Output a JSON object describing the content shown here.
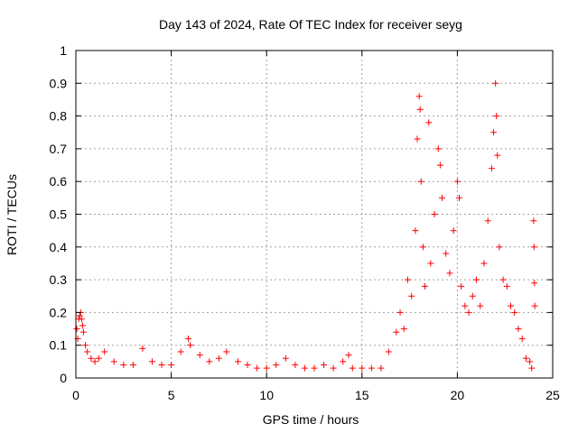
{
  "chart_data": {
    "type": "scatter",
    "title": "Day 143 of 2024, Rate Of TEC Index for receiver seyg",
    "xlabel": "GPS time / hours",
    "ylabel": "ROTI / TECUs",
    "xlim": [
      0,
      25
    ],
    "ylim": [
      0,
      1
    ],
    "x_ticks": [
      0,
      5,
      10,
      15,
      20,
      25
    ],
    "x_tick_labels": [
      "0",
      "5",
      "10",
      "15",
      "20",
      "25"
    ],
    "y_ticks": [
      0,
      0.1,
      0.2,
      0.3,
      0.4,
      0.5,
      0.6,
      0.7,
      0.8,
      0.9,
      1
    ],
    "y_tick_labels": [
      "0",
      "0.1",
      "0.2",
      "0.3",
      "0.4",
      "0.5",
      "0.6",
      "0.7",
      "0.8",
      "0.9",
      "1"
    ],
    "grid": true,
    "marker": "+",
    "colors": {
      "marker": "#ff0000",
      "grid": "#a0a0a0",
      "axis": "#000000"
    },
    "series": [
      {
        "points": [
          [
            0.05,
            0.15
          ],
          [
            0.1,
            0.12
          ],
          [
            0.15,
            0.18
          ],
          [
            0.2,
            0.19
          ],
          [
            0.25,
            0.2
          ],
          [
            0.3,
            0.18
          ],
          [
            0.35,
            0.16
          ],
          [
            0.4,
            0.14
          ],
          [
            0.5,
            0.1
          ],
          [
            0.6,
            0.08
          ],
          [
            0.8,
            0.06
          ],
          [
            1.0,
            0.05
          ],
          [
            1.2,
            0.06
          ],
          [
            1.5,
            0.08
          ],
          [
            2.0,
            0.05
          ],
          [
            2.5,
            0.04
          ],
          [
            3.0,
            0.04
          ],
          [
            3.5,
            0.09
          ],
          [
            4.0,
            0.05
          ],
          [
            4.5,
            0.04
          ],
          [
            5.0,
            0.04
          ],
          [
            5.5,
            0.08
          ],
          [
            5.9,
            0.12
          ],
          [
            6.0,
            0.1
          ],
          [
            6.5,
            0.07
          ],
          [
            7.0,
            0.05
          ],
          [
            7.5,
            0.06
          ],
          [
            7.9,
            0.08
          ],
          [
            8.5,
            0.05
          ],
          [
            9.0,
            0.04
          ],
          [
            9.5,
            0.03
          ],
          [
            10.0,
            0.03
          ],
          [
            10.5,
            0.04
          ],
          [
            11.0,
            0.06
          ],
          [
            11.5,
            0.04
          ],
          [
            12.0,
            0.03
          ],
          [
            12.5,
            0.03
          ],
          [
            13.0,
            0.04
          ],
          [
            13.5,
            0.03
          ],
          [
            14.0,
            0.05
          ],
          [
            14.3,
            0.07
          ],
          [
            14.5,
            0.03
          ],
          [
            15.0,
            0.03
          ],
          [
            15.5,
            0.03
          ],
          [
            16.0,
            0.03
          ],
          [
            16.4,
            0.08
          ],
          [
            16.8,
            0.14
          ],
          [
            17.0,
            0.2
          ],
          [
            17.2,
            0.15
          ],
          [
            17.4,
            0.3
          ],
          [
            17.6,
            0.25
          ],
          [
            17.8,
            0.45
          ],
          [
            17.9,
            0.73
          ],
          [
            18.0,
            0.86
          ],
          [
            18.05,
            0.82
          ],
          [
            18.1,
            0.6
          ],
          [
            18.2,
            0.4
          ],
          [
            18.3,
            0.28
          ],
          [
            18.5,
            0.78
          ],
          [
            18.6,
            0.35
          ],
          [
            18.8,
            0.5
          ],
          [
            19.0,
            0.7
          ],
          [
            19.1,
            0.65
          ],
          [
            19.2,
            0.55
          ],
          [
            19.4,
            0.38
          ],
          [
            19.6,
            0.32
          ],
          [
            19.8,
            0.45
          ],
          [
            20.0,
            0.6
          ],
          [
            20.1,
            0.55
          ],
          [
            20.2,
            0.28
          ],
          [
            20.4,
            0.22
          ],
          [
            20.6,
            0.2
          ],
          [
            20.8,
            0.25
          ],
          [
            21.0,
            0.3
          ],
          [
            21.2,
            0.22
          ],
          [
            21.4,
            0.35
          ],
          [
            21.6,
            0.48
          ],
          [
            21.8,
            0.64
          ],
          [
            21.9,
            0.75
          ],
          [
            22.0,
            0.9
          ],
          [
            22.05,
            0.8
          ],
          [
            22.1,
            0.68
          ],
          [
            22.2,
            0.4
          ],
          [
            22.4,
            0.3
          ],
          [
            22.6,
            0.28
          ],
          [
            22.8,
            0.22
          ],
          [
            23.0,
            0.2
          ],
          [
            23.2,
            0.15
          ],
          [
            23.4,
            0.12
          ],
          [
            23.6,
            0.06
          ],
          [
            23.8,
            0.05
          ],
          [
            23.9,
            0.03
          ],
          [
            24.0,
            0.48
          ],
          [
            24.02,
            0.4
          ],
          [
            24.04,
            0.29
          ],
          [
            24.06,
            0.22
          ]
        ]
      }
    ]
  }
}
